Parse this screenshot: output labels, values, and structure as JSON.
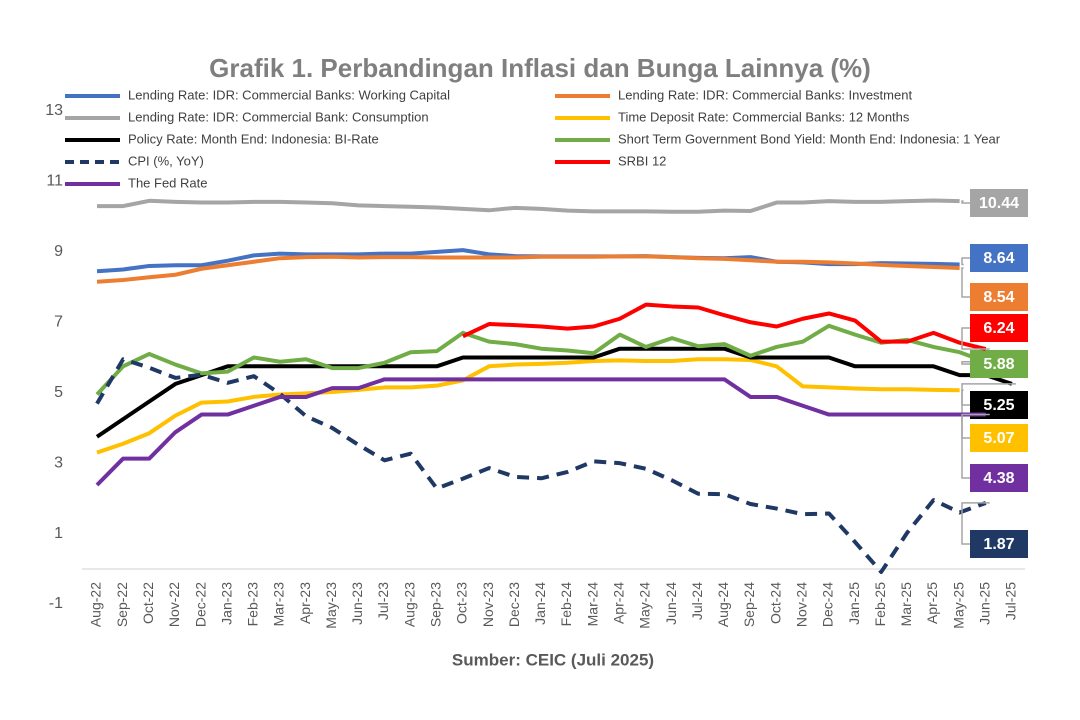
{
  "chart_data": {
    "type": "line",
    "title": "Grafik 1. Perbandingan Inflasi dan Bunga Lainnya (%)",
    "source": "Sumber: CEIC (Juli 2025)",
    "categories": [
      "Aug-22",
      "Sep-22",
      "Oct-22",
      "Nov-22",
      "Dec-22",
      "Jan-23",
      "Feb-23",
      "Mar-23",
      "Apr-23",
      "May-23",
      "Jun-23",
      "Jul-23",
      "Aug-23",
      "Sep-23",
      "Oct-23",
      "Nov-23",
      "Dec-23",
      "Jan-24",
      "Feb-24",
      "Mar-24",
      "Apr-24",
      "May-24",
      "Jun-24",
      "Jul-24",
      "Aug-24",
      "Sep-24",
      "Oct-24",
      "Nov-24",
      "Dec-24",
      "Jan-25",
      "Feb-25",
      "Mar-25",
      "Apr-25",
      "May-25",
      "Jun-25",
      "Jul-25"
    ],
    "ylim": [
      -1,
      13
    ],
    "yticks": [
      -1,
      1,
      3,
      5,
      7,
      9,
      11,
      13
    ],
    "series": [
      {
        "name": "Lending Rate: IDR: Commercial Banks: Working Capital",
        "color": "#4472c4",
        "values": [
          8.45,
          8.5,
          8.6,
          8.62,
          8.62,
          8.75,
          8.9,
          8.95,
          8.93,
          8.93,
          8.93,
          8.95,
          8.95,
          9.0,
          9.05,
          8.93,
          8.88,
          8.87,
          8.87,
          8.87,
          8.87,
          8.88,
          8.85,
          8.83,
          8.82,
          8.85,
          8.72,
          8.7,
          8.65,
          8.65,
          8.68,
          8.67,
          8.66,
          8.64,
          null,
          null
        ]
      },
      {
        "name": "Lending Rate: IDR: Commercial Banks: Investment",
        "color": "#ed7d31",
        "values": [
          8.15,
          8.2,
          8.28,
          8.35,
          8.52,
          8.62,
          8.72,
          8.82,
          8.85,
          8.86,
          8.84,
          8.85,
          8.85,
          8.84,
          8.84,
          8.84,
          8.84,
          8.86,
          8.86,
          8.86,
          8.87,
          8.87,
          8.85,
          8.82,
          8.8,
          8.76,
          8.72,
          8.72,
          8.7,
          8.67,
          8.63,
          8.6,
          8.57,
          8.54,
          null,
          null
        ]
      },
      {
        "name": "Lending Rate: IDR: Commercial Bank: Consumption",
        "color": "#a5a5a5",
        "values": [
          10.3,
          10.3,
          10.45,
          10.42,
          10.4,
          10.4,
          10.42,
          10.42,
          10.4,
          10.38,
          10.32,
          10.3,
          10.28,
          10.26,
          10.22,
          10.18,
          10.25,
          10.22,
          10.17,
          10.15,
          10.15,
          10.15,
          10.14,
          10.14,
          10.17,
          10.16,
          10.4,
          10.4,
          10.44,
          10.42,
          10.42,
          10.44,
          10.46,
          10.44,
          null,
          null
        ]
      },
      {
        "name": "Time Deposit Rate: Commercial Banks: 12 Months",
        "color": "#ffc000",
        "values": [
          3.3,
          3.55,
          3.85,
          4.35,
          4.72,
          4.75,
          4.88,
          4.95,
          4.98,
          5.02,
          5.08,
          5.15,
          5.15,
          5.2,
          5.35,
          5.75,
          5.8,
          5.82,
          5.85,
          5.9,
          5.92,
          5.9,
          5.9,
          5.95,
          5.95,
          5.93,
          5.75,
          5.18,
          5.15,
          5.12,
          5.1,
          5.1,
          5.08,
          5.07,
          null,
          null
        ]
      },
      {
        "name": "Policy Rate: Month End: Indonesia: BI-Rate",
        "color": "#000000",
        "values": [
          3.75,
          4.25,
          4.75,
          5.25,
          5.5,
          5.75,
          5.75,
          5.75,
          5.75,
          5.75,
          5.75,
          5.75,
          5.75,
          5.75,
          6.0,
          6.0,
          6.0,
          6.0,
          6.0,
          6.0,
          6.25,
          6.25,
          6.25,
          6.25,
          6.25,
          6.0,
          6.0,
          6.0,
          6.0,
          5.75,
          5.75,
          5.75,
          5.75,
          5.5,
          5.5,
          5.25
        ]
      },
      {
        "name": " Short Term Government Bond Yield: Month End: Indonesia: 1 Year",
        "color": "#70ad47",
        "values": [
          4.95,
          5.75,
          6.1,
          5.8,
          5.55,
          5.6,
          6.0,
          5.88,
          5.95,
          5.7,
          5.7,
          5.85,
          6.15,
          6.18,
          6.7,
          6.45,
          6.38,
          6.25,
          6.2,
          6.12,
          6.65,
          6.3,
          6.55,
          6.32,
          6.38,
          6.05,
          6.3,
          6.45,
          6.9,
          6.65,
          6.42,
          6.5,
          6.3,
          6.15,
          5.88,
          null
        ]
      },
      {
        "name": "CPI (%, YoY)",
        "color": "#1f3864",
        "dash": true,
        "values": [
          4.69,
          5.95,
          5.71,
          5.42,
          5.51,
          5.28,
          5.47,
          4.97,
          4.33,
          4.0,
          3.52,
          3.08,
          3.27,
          2.28,
          2.56,
          2.86,
          2.61,
          2.57,
          2.75,
          3.05,
          3.0,
          2.84,
          2.51,
          2.13,
          2.12,
          1.84,
          1.71,
          1.55,
          1.57,
          0.76,
          -0.09,
          1.03,
          1.95,
          1.6,
          1.87,
          null
        ]
      },
      {
        "name": "SRBI 12",
        "color": "#ff0000",
        "values": [
          null,
          null,
          null,
          null,
          null,
          null,
          null,
          null,
          null,
          null,
          null,
          null,
          null,
          null,
          6.6,
          6.95,
          6.92,
          6.88,
          6.82,
          6.88,
          7.1,
          7.5,
          7.45,
          7.42,
          7.2,
          7.0,
          6.88,
          7.1,
          7.25,
          7.05,
          6.45,
          6.45,
          6.7,
          6.42,
          6.24,
          null
        ]
      },
      {
        "name": "The Fed Rate",
        "color": "#7030a0",
        "values": [
          2.38,
          3.13,
          3.13,
          3.88,
          4.38,
          4.38,
          4.63,
          4.88,
          4.88,
          5.13,
          5.13,
          5.38,
          5.38,
          5.38,
          5.38,
          5.38,
          5.38,
          5.38,
          5.38,
          5.38,
          5.38,
          5.38,
          5.38,
          5.38,
          5.38,
          4.88,
          4.88,
          4.63,
          4.38,
          4.38,
          4.38,
          4.38,
          4.38,
          4.38,
          4.38,
          null
        ]
      }
    ]
  }
}
